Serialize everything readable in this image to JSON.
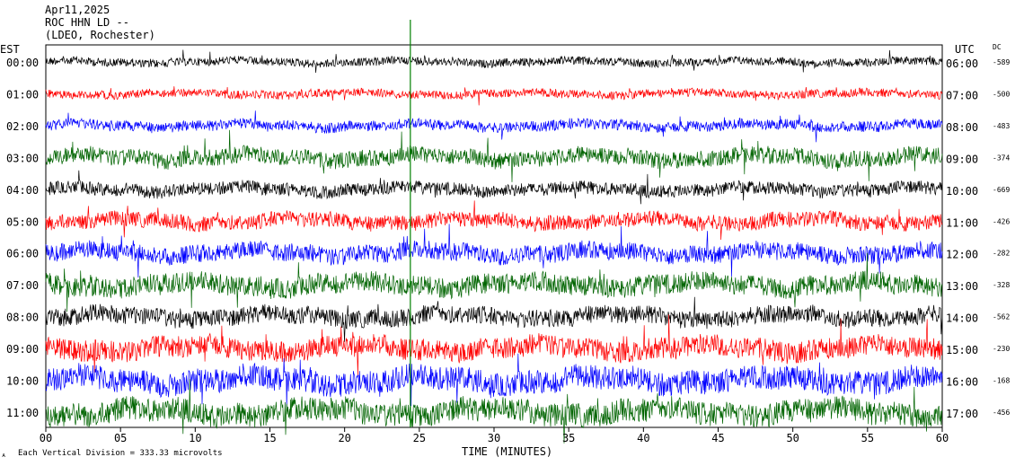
{
  "header": {
    "date": "Apr11,2025",
    "station": "ROC HHN LD --",
    "network": "(LDEO, Rochester)"
  },
  "axis_labels": {
    "left_zone": "EST",
    "right_zone": "UTC",
    "dc_header": "DC",
    "xlabel": "TIME (MINUTES)",
    "scale_note": "Each Vertical Division = 333.33 microvolts"
  },
  "colors": {
    "trace_cycle": [
      "#000000",
      "#ff0000",
      "#0000ff",
      "#006400"
    ],
    "marker": "#008000",
    "background": "#ffffff",
    "axis": "#000000"
  },
  "chart_data": {
    "type": "helicorder",
    "xlim": [
      0,
      60
    ],
    "x_ticks": [
      0,
      5,
      10,
      15,
      20,
      25,
      30,
      35,
      40,
      45,
      50,
      55,
      60
    ],
    "x_tick_labels": [
      "00",
      "05",
      "10",
      "15",
      "20",
      "25",
      "30",
      "35",
      "40",
      "45",
      "50",
      "55",
      "60"
    ],
    "xlabel": "TIME (MINUTES)",
    "rows": [
      {
        "est": "00:00",
        "utc": "06:00",
        "dc": "-589",
        "amplitude": 0.35
      },
      {
        "est": "01:00",
        "utc": "07:00",
        "dc": "-500",
        "amplitude": 0.35
      },
      {
        "est": "02:00",
        "utc": "08:00",
        "dc": "-483",
        "amplitude": 0.45
      },
      {
        "est": "03:00",
        "utc": "09:00",
        "dc": "-374",
        "amplitude": 0.7
      },
      {
        "est": "04:00",
        "utc": "10:00",
        "dc": "-669",
        "amplitude": 0.55
      },
      {
        "est": "05:00",
        "utc": "11:00",
        "dc": "-426",
        "amplitude": 0.65
      },
      {
        "est": "06:00",
        "utc": "12:00",
        "dc": "-282",
        "amplitude": 0.75
      },
      {
        "est": "07:00",
        "utc": "13:00",
        "dc": "-328",
        "amplitude": 0.85
      },
      {
        "est": "08:00",
        "utc": "14:00",
        "dc": "-562",
        "amplitude": 0.75
      },
      {
        "est": "09:00",
        "utc": "15:00",
        "dc": "-230",
        "amplitude": 0.9
      },
      {
        "est": "10:00",
        "utc": "16:00",
        "dc": "-168",
        "amplitude": 1.0
      },
      {
        "est": "11:00",
        "utc": "17:00",
        "dc": "-456",
        "amplitude": 1.0
      }
    ],
    "event_marker_minute": 24.4
  }
}
